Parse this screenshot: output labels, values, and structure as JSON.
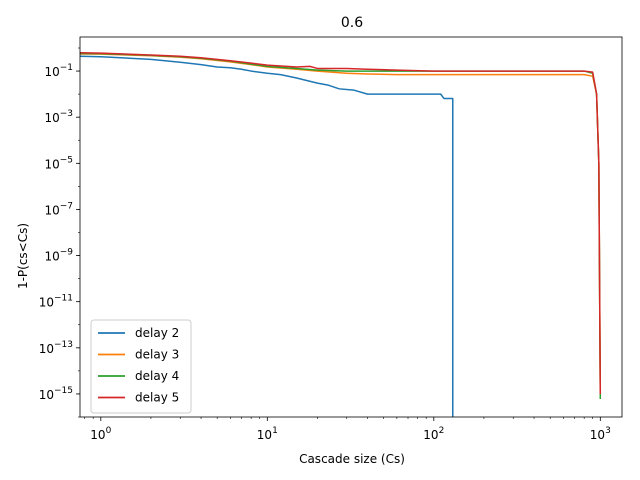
{
  "chart_data": {
    "type": "line",
    "title": "0.6",
    "xlabel": "Cascade size (Cs)",
    "ylabel": "1-P(cs<Cs)",
    "x_scale": "log",
    "y_scale": "log",
    "xlim": [
      0.75,
      1350
    ],
    "ylim": [
      1e-16,
      3
    ],
    "grid": false,
    "legend_position": "lower-left",
    "x_ticks": [
      {
        "value": 1,
        "label": "10^0"
      },
      {
        "value": 10,
        "label": "10^1"
      },
      {
        "value": 100,
        "label": "10^2"
      },
      {
        "value": 1000,
        "label": "10^3"
      }
    ],
    "y_ticks": [
      {
        "value": 0.1,
        "label": "10^-1"
      },
      {
        "value": 0.001,
        "label": "10^-3"
      },
      {
        "value": 1e-05,
        "label": "10^-5"
      },
      {
        "value": 1e-07,
        "label": "10^-7"
      },
      {
        "value": 1e-09,
        "label": "10^-9"
      },
      {
        "value": 1e-11,
        "label": "10^-11"
      },
      {
        "value": 1e-13,
        "label": "10^-13"
      },
      {
        "value": 1e-15,
        "label": "10^-15"
      }
    ],
    "series": [
      {
        "name": "delay 2",
        "color": "#1f77b4",
        "x": [
          0.75,
          1,
          2,
          3,
          4,
          5,
          6,
          7,
          8,
          10,
          12,
          15,
          17,
          20,
          23,
          27,
          33,
          40,
          60,
          80,
          110,
          115,
          130,
          130
        ],
        "y": [
          0.44,
          0.42,
          0.32,
          0.24,
          0.19,
          0.15,
          0.14,
          0.12,
          0.1,
          0.08,
          0.07,
          0.05,
          0.04,
          0.03,
          0.025,
          0.017,
          0.015,
          0.01,
          0.01,
          0.01,
          0.01,
          0.0065,
          0.0065,
          1e-16
        ]
      },
      {
        "name": "delay 3",
        "color": "#ff7f0e",
        "x": [
          0.75,
          1,
          2,
          3,
          4,
          6,
          8,
          10,
          15,
          20,
          30,
          40,
          60,
          100,
          200,
          400,
          800,
          900,
          950,
          980,
          1000
        ],
        "y": [
          0.55,
          0.54,
          0.46,
          0.4,
          0.34,
          0.25,
          0.19,
          0.15,
          0.12,
          0.1,
          0.08,
          0.075,
          0.07,
          0.07,
          0.07,
          0.07,
          0.07,
          0.06,
          0.01,
          1e-05,
          1e-15
        ]
      },
      {
        "name": "delay 4",
        "color": "#2ca02c",
        "x": [
          0.75,
          1,
          2,
          3,
          4,
          6,
          8,
          10,
          15,
          20,
          30,
          40,
          60,
          100,
          200,
          400,
          800,
          900,
          950,
          980,
          1000
        ],
        "y": [
          0.58,
          0.57,
          0.48,
          0.42,
          0.36,
          0.27,
          0.2,
          0.16,
          0.13,
          0.11,
          0.1,
          0.1,
          0.1,
          0.1,
          0.1,
          0.1,
          0.1,
          0.08,
          0.01,
          1e-05,
          6e-16
        ]
      },
      {
        "name": "delay 5",
        "color": "#d62728",
        "x": [
          0.75,
          1,
          2,
          3,
          4,
          6,
          8,
          10,
          15,
          18,
          20,
          30,
          40,
          60,
          100,
          200,
          400,
          800,
          900,
          950,
          980,
          1000
        ],
        "y": [
          0.62,
          0.6,
          0.5,
          0.44,
          0.38,
          0.28,
          0.22,
          0.18,
          0.15,
          0.16,
          0.13,
          0.13,
          0.12,
          0.11,
          0.1,
          0.1,
          0.1,
          0.1,
          0.09,
          0.01,
          1e-05,
          1e-15
        ]
      }
    ]
  }
}
